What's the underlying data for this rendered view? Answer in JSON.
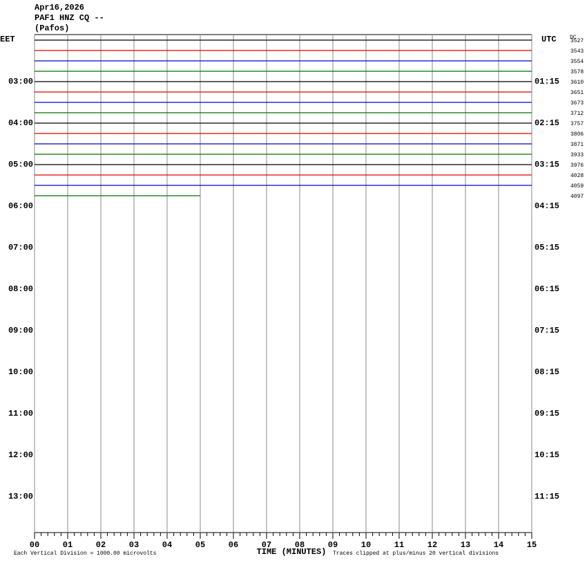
{
  "chart_data": {
    "type": "helicorder",
    "header": [
      "Apr16,2026",
      "PAF1 HNZ CQ --",
      "(Pafos)"
    ],
    "left_zone": "EET",
    "right_zone": "UTC",
    "dc_label": "DC",
    "left_hours": [
      "03:00",
      "04:00",
      "05:00",
      "06:00",
      "07:00",
      "08:00",
      "09:00",
      "10:00",
      "11:00",
      "12:00",
      "13:00"
    ],
    "right_hours": [
      "01:15",
      "02:15",
      "03:15",
      "04:15",
      "05:15",
      "06:15",
      "07:15",
      "08:15",
      "09:15",
      "10:15",
      "11:15"
    ],
    "traces": [
      {
        "label": "3527",
        "color": "#000000",
        "end": 15
      },
      {
        "label": "3543",
        "color": "#e00000",
        "end": 15
      },
      {
        "label": "3554",
        "color": "#0000d0",
        "end": 15
      },
      {
        "label": "3578",
        "color": "#007000",
        "end": 15
      },
      {
        "label": "3610",
        "color": "#000000",
        "end": 15
      },
      {
        "label": "3651",
        "color": "#e00000",
        "end": 15
      },
      {
        "label": "3673",
        "color": "#0000d0",
        "end": 15
      },
      {
        "label": "3712",
        "color": "#007000",
        "end": 15
      },
      {
        "label": "3757",
        "color": "#000000",
        "end": 15
      },
      {
        "label": "3806",
        "color": "#e00000",
        "end": 15
      },
      {
        "label": "3871",
        "color": "#0000d0",
        "end": 15
      },
      {
        "label": "3933",
        "color": "#007000",
        "end": 15
      },
      {
        "label": "3976",
        "color": "#000000",
        "end": 15
      },
      {
        "label": "4028",
        "color": "#e00000",
        "end": 15
      },
      {
        "label": "4059",
        "color": "#0000d0",
        "end": 15
      },
      {
        "label": "4097",
        "color": "#007000",
        "end": 5
      }
    ],
    "xlim": [
      0,
      15
    ],
    "xticks": [
      {
        "value": 0,
        "label": "00"
      },
      {
        "value": 1,
        "label": "01"
      },
      {
        "value": 2,
        "label": "02"
      },
      {
        "value": 3,
        "label": "03"
      },
      {
        "value": 4,
        "label": "04"
      },
      {
        "value": 5,
        "label": "05"
      },
      {
        "value": 6,
        "label": "06"
      },
      {
        "value": 7,
        "label": "07"
      },
      {
        "value": 8,
        "label": "08"
      },
      {
        "value": 9,
        "label": "09"
      },
      {
        "value": 10,
        "label": "10"
      },
      {
        "value": 11,
        "label": "11"
      },
      {
        "value": 12,
        "label": "12"
      },
      {
        "value": 13,
        "label": "13"
      },
      {
        "value": 14,
        "label": "14"
      },
      {
        "value": 15,
        "label": "15"
      }
    ],
    "xlabel": "TIME (MINUTES)",
    "scale_note": "Each Vertical Division = 1000.00 microvolts",
    "clip_note": "Traces clipped at plus/minus 20 vertical divisions",
    "grid": true
  }
}
